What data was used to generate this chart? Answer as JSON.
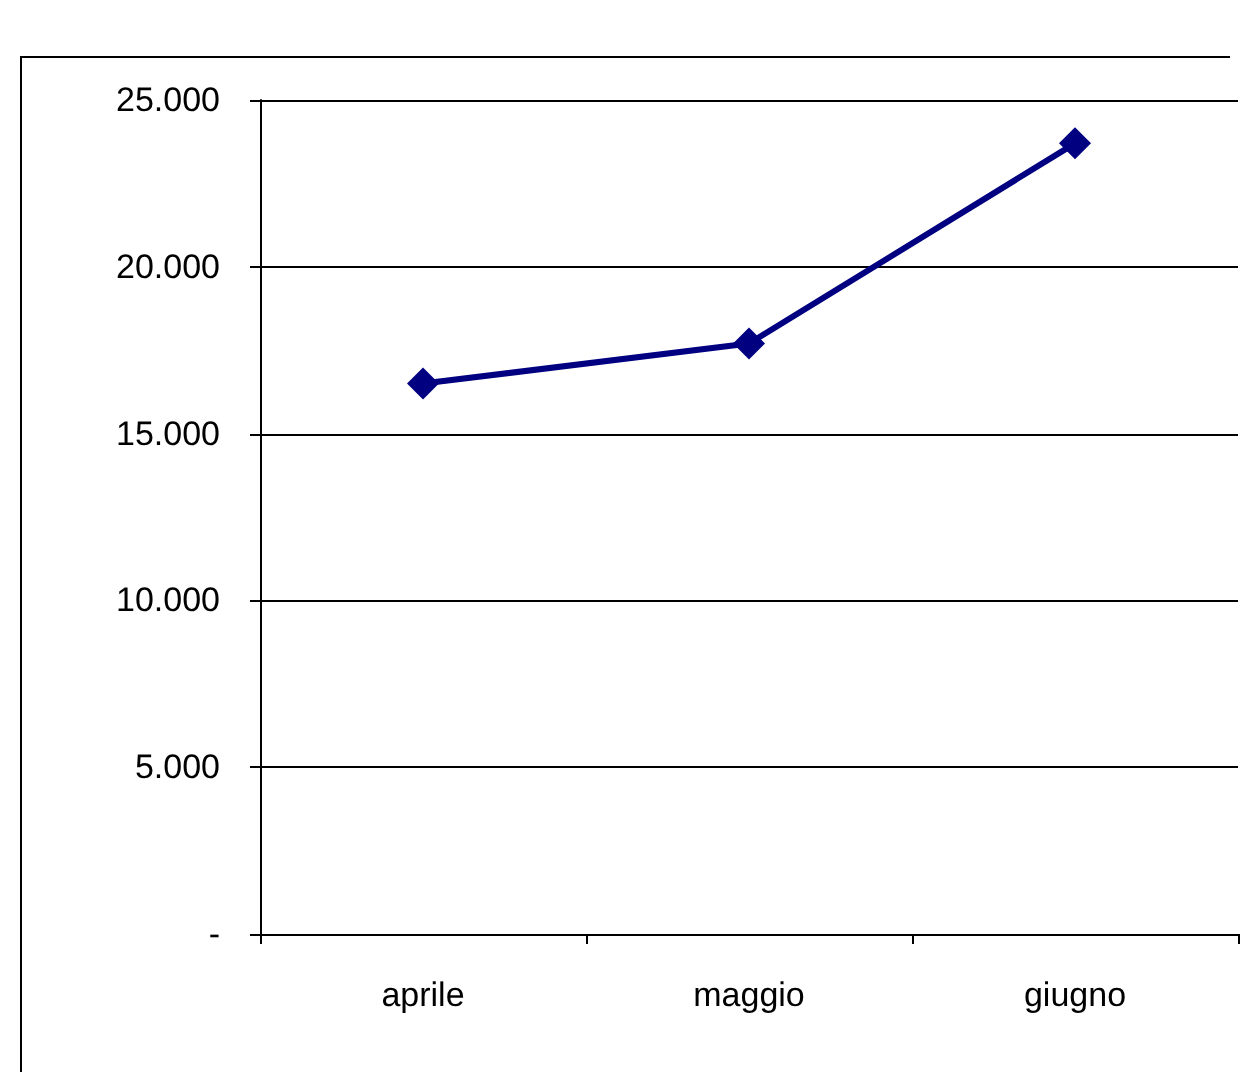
{
  "chart_data": {
    "type": "line",
    "categories": [
      "aprile",
      "maggio",
      "giugno"
    ],
    "series": [
      {
        "color": "#000080",
        "values": [
          16500,
          17700,
          23700
        ]
      }
    ],
    "ylim": [
      0,
      25000
    ],
    "yticks": [
      {
        "value": 0,
        "label": "-"
      },
      {
        "value": 5000,
        "label": "5.000"
      },
      {
        "value": 10000,
        "label": "10.000"
      },
      {
        "value": 15000,
        "label": "15.000"
      },
      {
        "value": 20000,
        "label": "20.000"
      },
      {
        "value": 25000,
        "label": "25.000"
      }
    ],
    "grid": "y",
    "marker": "diamond",
    "line_style": "solid"
  }
}
